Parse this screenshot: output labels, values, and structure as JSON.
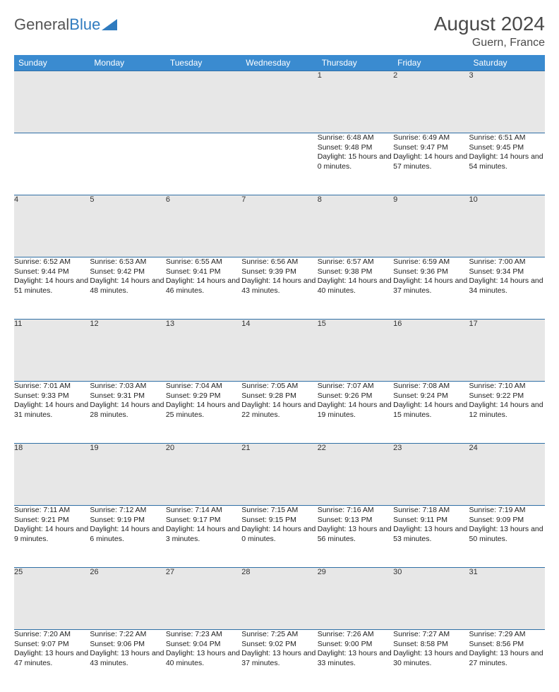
{
  "brand": {
    "part1": "General",
    "part2": "Blue"
  },
  "title": "August 2024",
  "location": "Guern, France",
  "colors": {
    "header_bg": "#3a8bd0",
    "border": "#2f6fa5",
    "daynum_bg": "#e7e7e7",
    "text": "#222222",
    "title_text": "#4a4a4a"
  },
  "day_headers": [
    "Sunday",
    "Monday",
    "Tuesday",
    "Wednesday",
    "Thursday",
    "Friday",
    "Saturday"
  ],
  "weeks": [
    [
      null,
      null,
      null,
      null,
      {
        "n": "1",
        "sr": "6:48 AM",
        "ss": "9:48 PM",
        "dl": "15 hours and 0 minutes."
      },
      {
        "n": "2",
        "sr": "6:49 AM",
        "ss": "9:47 PM",
        "dl": "14 hours and 57 minutes."
      },
      {
        "n": "3",
        "sr": "6:51 AM",
        "ss": "9:45 PM",
        "dl": "14 hours and 54 minutes."
      }
    ],
    [
      {
        "n": "4",
        "sr": "6:52 AM",
        "ss": "9:44 PM",
        "dl": "14 hours and 51 minutes."
      },
      {
        "n": "5",
        "sr": "6:53 AM",
        "ss": "9:42 PM",
        "dl": "14 hours and 48 minutes."
      },
      {
        "n": "6",
        "sr": "6:55 AM",
        "ss": "9:41 PM",
        "dl": "14 hours and 46 minutes."
      },
      {
        "n": "7",
        "sr": "6:56 AM",
        "ss": "9:39 PM",
        "dl": "14 hours and 43 minutes."
      },
      {
        "n": "8",
        "sr": "6:57 AM",
        "ss": "9:38 PM",
        "dl": "14 hours and 40 minutes."
      },
      {
        "n": "9",
        "sr": "6:59 AM",
        "ss": "9:36 PM",
        "dl": "14 hours and 37 minutes."
      },
      {
        "n": "10",
        "sr": "7:00 AM",
        "ss": "9:34 PM",
        "dl": "14 hours and 34 minutes."
      }
    ],
    [
      {
        "n": "11",
        "sr": "7:01 AM",
        "ss": "9:33 PM",
        "dl": "14 hours and 31 minutes."
      },
      {
        "n": "12",
        "sr": "7:03 AM",
        "ss": "9:31 PM",
        "dl": "14 hours and 28 minutes."
      },
      {
        "n": "13",
        "sr": "7:04 AM",
        "ss": "9:29 PM",
        "dl": "14 hours and 25 minutes."
      },
      {
        "n": "14",
        "sr": "7:05 AM",
        "ss": "9:28 PM",
        "dl": "14 hours and 22 minutes."
      },
      {
        "n": "15",
        "sr": "7:07 AM",
        "ss": "9:26 PM",
        "dl": "14 hours and 19 minutes."
      },
      {
        "n": "16",
        "sr": "7:08 AM",
        "ss": "9:24 PM",
        "dl": "14 hours and 15 minutes."
      },
      {
        "n": "17",
        "sr": "7:10 AM",
        "ss": "9:22 PM",
        "dl": "14 hours and 12 minutes."
      }
    ],
    [
      {
        "n": "18",
        "sr": "7:11 AM",
        "ss": "9:21 PM",
        "dl": "14 hours and 9 minutes."
      },
      {
        "n": "19",
        "sr": "7:12 AM",
        "ss": "9:19 PM",
        "dl": "14 hours and 6 minutes."
      },
      {
        "n": "20",
        "sr": "7:14 AM",
        "ss": "9:17 PM",
        "dl": "14 hours and 3 minutes."
      },
      {
        "n": "21",
        "sr": "7:15 AM",
        "ss": "9:15 PM",
        "dl": "14 hours and 0 minutes."
      },
      {
        "n": "22",
        "sr": "7:16 AM",
        "ss": "9:13 PM",
        "dl": "13 hours and 56 minutes."
      },
      {
        "n": "23",
        "sr": "7:18 AM",
        "ss": "9:11 PM",
        "dl": "13 hours and 53 minutes."
      },
      {
        "n": "24",
        "sr": "7:19 AM",
        "ss": "9:09 PM",
        "dl": "13 hours and 50 minutes."
      }
    ],
    [
      {
        "n": "25",
        "sr": "7:20 AM",
        "ss": "9:07 PM",
        "dl": "13 hours and 47 minutes."
      },
      {
        "n": "26",
        "sr": "7:22 AM",
        "ss": "9:06 PM",
        "dl": "13 hours and 43 minutes."
      },
      {
        "n": "27",
        "sr": "7:23 AM",
        "ss": "9:04 PM",
        "dl": "13 hours and 40 minutes."
      },
      {
        "n": "28",
        "sr": "7:25 AM",
        "ss": "9:02 PM",
        "dl": "13 hours and 37 minutes."
      },
      {
        "n": "29",
        "sr": "7:26 AM",
        "ss": "9:00 PM",
        "dl": "13 hours and 33 minutes."
      },
      {
        "n": "30",
        "sr": "7:27 AM",
        "ss": "8:58 PM",
        "dl": "13 hours and 30 minutes."
      },
      {
        "n": "31",
        "sr": "7:29 AM",
        "ss": "8:56 PM",
        "dl": "13 hours and 27 minutes."
      }
    ]
  ],
  "labels": {
    "sunrise": "Sunrise: ",
    "sunset": "Sunset: ",
    "daylight": "Daylight: "
  }
}
